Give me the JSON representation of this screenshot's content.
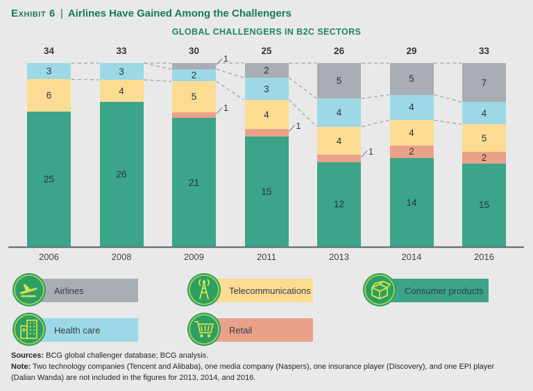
{
  "header": {
    "kicker": "Exhibit 6",
    "divider": "|",
    "title": "Airlines Have Gained Among the Challengers",
    "subtitle": "GLOBAL CHALLENGERS IN B2C SECTORS"
  },
  "chart_data": {
    "type": "bar",
    "variant": "stacked-normalized-height",
    "title": "GLOBAL CHALLENGERS IN B2C SECTORS",
    "categories": [
      "2006",
      "2008",
      "2009",
      "2011",
      "2013",
      "2014",
      "2016"
    ],
    "totals": [
      34,
      33,
      30,
      25,
      26,
      29,
      33
    ],
    "series": [
      {
        "name": "Airlines",
        "color": "#a9aeb4",
        "values": [
          0,
          0,
          1,
          2,
          5,
          5,
          7
        ]
      },
      {
        "name": "Health care",
        "color": "#9cd8e5",
        "values": [
          3,
          3,
          2,
          3,
          4,
          4,
          4
        ]
      },
      {
        "name": "Telecommunications",
        "color": "#fbdc92",
        "values": [
          6,
          4,
          5,
          4,
          4,
          4,
          5
        ]
      },
      {
        "name": "Retail",
        "color": "#e9a289",
        "values": [
          0,
          0,
          1,
          1,
          1,
          2,
          2
        ]
      },
      {
        "name": "Consumer products",
        "color": "#3ba489",
        "values": [
          25,
          26,
          21,
          15,
          12,
          14,
          15
        ]
      }
    ],
    "stack_order_top_to_bottom": [
      "Airlines",
      "Health care",
      "Telecommunications",
      "Retail",
      "Consumer products"
    ],
    "grid": false,
    "legend_position": "bottom",
    "connector_lines": "dashed between adjacent bars at top, Airlines/Health-care and Health-care/Telecommunications boundaries"
  },
  "legend": {
    "items": [
      {
        "label": "Airlines",
        "icon": "airplane-icon",
        "color": "#a9aeb4"
      },
      {
        "label": "Telecommunications",
        "icon": "radio-tower-icon",
        "color": "#fbdc92"
      },
      {
        "label": "Consumer products",
        "icon": "box-icon",
        "color": "#3ba489"
      },
      {
        "label": "Health care",
        "icon": "hospital-icon",
        "color": "#9cd8e5"
      },
      {
        "label": "Retail",
        "icon": "cart-icon",
        "color": "#e9a289"
      }
    ]
  },
  "footer": {
    "sources_label": "Sources:",
    "sources_text": " BCG global challenger database; BCG analysis.",
    "note_label": "Note:",
    "note_text": " Two technology companies (Tencent and Alibaba), one media company (Naspers), one insurance player (Discovery), and one EPI player (Dalian Wanda) are not included in the figures for 2013, 2014, and 2016."
  },
  "colors": {
    "background": "#e9e9e9",
    "title_green": "#17795c",
    "subtitle_green": "#1c8565",
    "axis": "#595d61",
    "dashed_connector": "#9aa0a4",
    "value_text": "#2b3337",
    "legend_circle": "#2e9f63",
    "legend_ring": "#b7d94e",
    "legend_icon": "#d8e44c"
  }
}
